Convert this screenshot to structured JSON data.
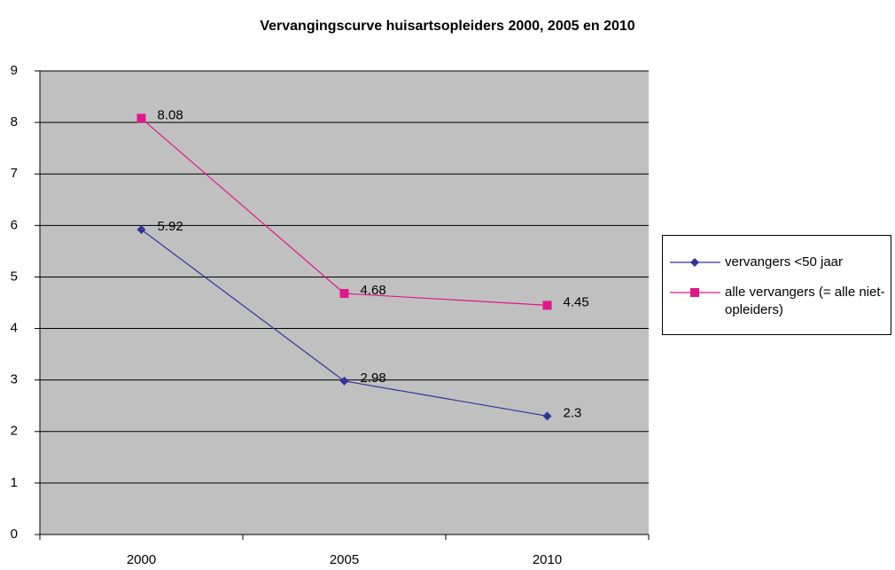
{
  "chart_data": {
    "type": "line",
    "title": "Vervangingscurve huisartsopleiders 2000, 2005 en 2010",
    "categories": [
      "2000",
      "2005",
      "2010"
    ],
    "series": [
      {
        "name": "vervangers <50 jaar",
        "color": "#333399",
        "marker": "diamond",
        "values": [
          5.92,
          2.98,
          2.3
        ]
      },
      {
        "name": "alle vervangers (= alle niet-opleiders)",
        "color": "#e0168a",
        "marker": "square",
        "values": [
          8.08,
          4.68,
          4.45
        ]
      }
    ],
    "ylim": [
      0,
      9
    ],
    "yticks": [
      0,
      1,
      2,
      3,
      4,
      5,
      6,
      7,
      8,
      9
    ],
    "grid": true,
    "legend": "right"
  }
}
